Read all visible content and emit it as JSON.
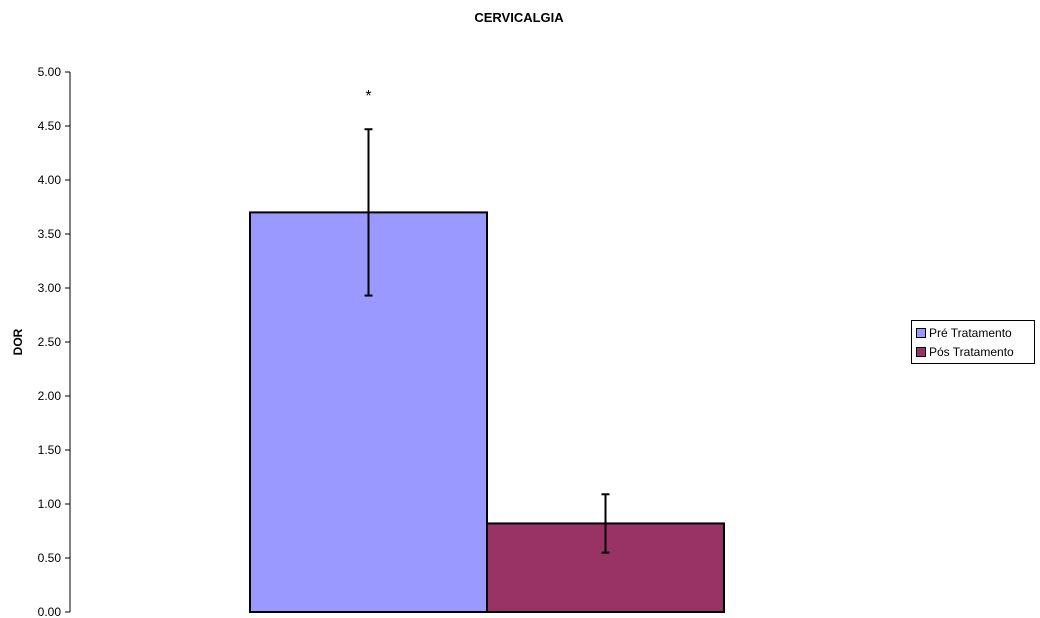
{
  "chart_data": {
    "type": "bar",
    "title": "CERVICALGIA",
    "ylabel": "DOR",
    "xlabel": "",
    "ylim": [
      0,
      5
    ],
    "yticks": [
      "0.00",
      "0.50",
      "1.00",
      "1.50",
      "2.00",
      "2.50",
      "3.00",
      "3.50",
      "4.00",
      "4.50",
      "5.00"
    ],
    "series": [
      {
        "name": "Pré Tratamento",
        "value": 3.7,
        "error": 0.77,
        "color": "#9999ff",
        "annotation": "*"
      },
      {
        "name": "Pós Tratamento",
        "value": 0.82,
        "error": 0.27,
        "color": "#993366"
      }
    ],
    "legend": {
      "placement": "right"
    },
    "grid": false
  }
}
